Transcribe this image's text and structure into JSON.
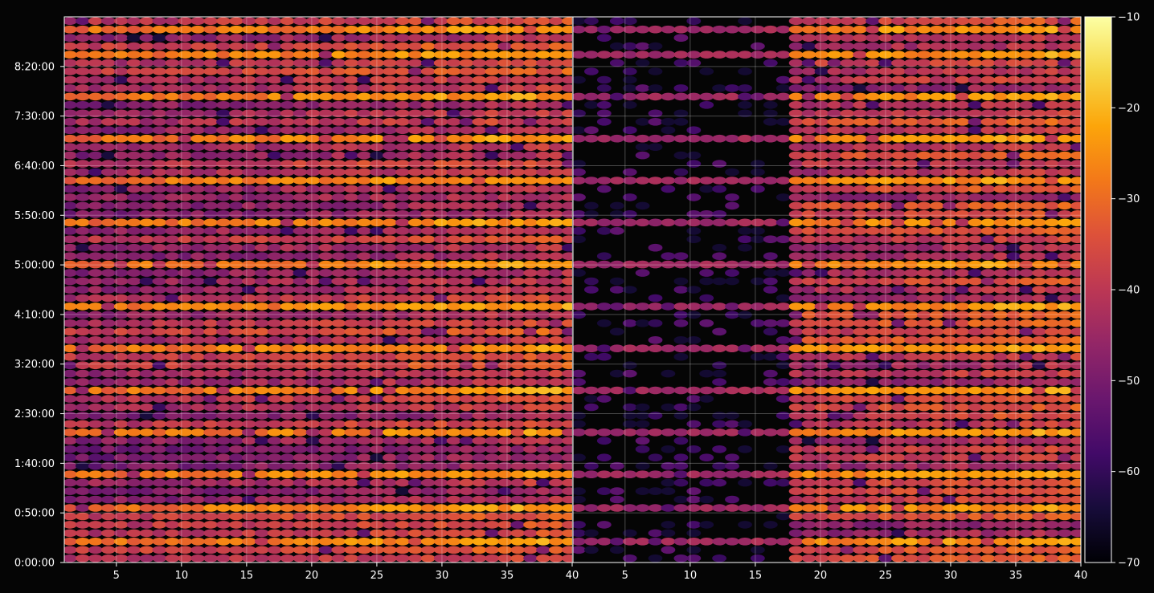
{
  "chart_data": {
    "type": "heatmap",
    "title": "",
    "xlabel": "",
    "ylabel": "",
    "background": "#050505",
    "grid": true,
    "colormap": "inferno",
    "panels": [
      {
        "name": "",
        "xlim": [
          1,
          40
        ],
        "xticks": [
          5,
          10,
          15,
          20,
          25,
          30,
          35,
          40
        ],
        "xtick_labels": [
          "5",
          "10",
          "15",
          "20",
          "25",
          "30",
          "35",
          "40"
        ],
        "activity": "full"
      },
      {
        "name": "",
        "xlim": [
          1,
          40
        ],
        "xticks": [
          5,
          10,
          15,
          20,
          25,
          30,
          35,
          40
        ],
        "xtick_labels": [
          "5",
          "10",
          "15",
          "20",
          "25",
          "30",
          "35",
          "40"
        ],
        "activity": "quiet columns 1-17, full from 18"
      }
    ],
    "y_axis": {
      "unit": "time",
      "range_seconds": [
        0,
        33000
      ],
      "ticks_seconds": [
        0,
        3000,
        6000,
        9000,
        12000,
        15000,
        18000,
        21000,
        24000,
        27000,
        30000
      ],
      "tick_labels": [
        "0:00:00",
        "0:50:00",
        "1:40:00",
        "2:30:00",
        "3:20:00",
        "4:10:00",
        "5:00:00",
        "5:50:00",
        "6:40:00",
        "7:30:00",
        "8:20:00"
      ]
    },
    "rows": 65,
    "bright_rows": [
      2,
      6,
      10,
      15,
      20,
      25,
      30,
      35,
      40,
      45,
      50,
      55,
      60,
      63
    ],
    "colorbar": {
      "min": -70,
      "max": -10,
      "ticks": [
        -70,
        -60,
        -50,
        -40,
        -30,
        -20,
        -10
      ],
      "tick_labels": [
        "−70",
        "−60",
        "−50",
        "−40",
        "−30",
        "−20",
        "−10"
      ]
    }
  }
}
